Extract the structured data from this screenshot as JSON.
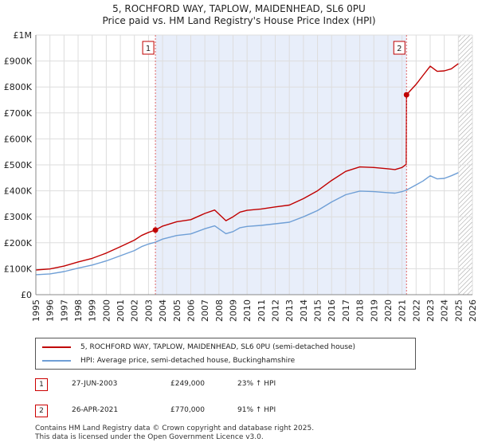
{
  "chart_data": {
    "type": "line",
    "title": "5, ROCHFORD WAY, TAPLOW, MAIDENHEAD, SL6 0PU",
    "subtitle": "Price paid vs. HM Land Registry's House Price Index (HPI)",
    "xlim": [
      1995,
      2026
    ],
    "ylim": [
      0,
      1000000
    ],
    "x_ticks": [
      "1995",
      "1996",
      "1997",
      "1998",
      "1999",
      "2000",
      "2001",
      "2002",
      "2003",
      "2004",
      "2005",
      "2006",
      "2007",
      "2008",
      "2009",
      "2010",
      "2011",
      "2012",
      "2013",
      "2014",
      "2015",
      "2016",
      "2017",
      "2018",
      "2019",
      "2020",
      "2021",
      "2022",
      "2023",
      "2024",
      "2025",
      "2026"
    ],
    "y_ticks": [
      {
        "value": 0,
        "label": "£0"
      },
      {
        "value": 100000,
        "label": "£100K"
      },
      {
        "value": 200000,
        "label": "£200K"
      },
      {
        "value": 300000,
        "label": "£300K"
      },
      {
        "value": 400000,
        "label": "£400K"
      },
      {
        "value": 500000,
        "label": "£500K"
      },
      {
        "value": 600000,
        "label": "£600K"
      },
      {
        "value": 700000,
        "label": "£700K"
      },
      {
        "value": 800000,
        "label": "£800K"
      },
      {
        "value": 900000,
        "label": "£900K"
      },
      {
        "value": 1000000,
        "label": "£1M"
      }
    ],
    "grid": true,
    "shaded_ranges": [
      {
        "from": 2003.49,
        "to": 2021.32,
        "color": "#e8eefa"
      }
    ],
    "future_hatch_from": 2025.0,
    "series": [
      {
        "name": "5, ROCHFORD WAY, TAPLOW, MAIDENHEAD, SL6 0PU (semi-detached house)",
        "color": "#c00000",
        "x": [
          1995,
          1996,
          1997,
          1998,
          1999,
          2000,
          2001,
          2002,
          2002.5,
          2003,
          2003.49,
          2004,
          2005,
          2006,
          2007,
          2007.7,
          2008.5,
          2009,
          2009.5,
          2010,
          2011,
          2012,
          2013,
          2014,
          2014.5,
          2015,
          2016,
          2017,
          2018,
          2019,
          2020,
          2020.5,
          2021,
          2021.3,
          2021.32,
          2022,
          2022.5,
          2023,
          2023.5,
          2024,
          2024.5,
          2025
        ],
        "values": [
          95000,
          99000,
          110000,
          126000,
          140000,
          160000,
          185000,
          210000,
          228000,
          240000,
          249000,
          264000,
          281000,
          289000,
          313000,
          326000,
          285000,
          300000,
          318000,
          325000,
          330000,
          338000,
          345000,
          370000,
          385000,
          400000,
          440000,
          475000,
          492000,
          490000,
          485000,
          482000,
          490000,
          502000,
          770000,
          810000,
          845000,
          880000,
          860000,
          862000,
          870000,
          890000
        ]
      },
      {
        "name": "HPI: Average price, semi-detached house, Buckinghamshire",
        "color": "#6f9fd6",
        "x": [
          1995,
          1996,
          1997,
          1998,
          1999,
          2000,
          2001,
          2002,
          2002.5,
          2003,
          2003.49,
          2004,
          2005,
          2006,
          2007,
          2007.7,
          2008.5,
          2009,
          2009.5,
          2010,
          2011,
          2012,
          2013,
          2014,
          2014.5,
          2015,
          2016,
          2017,
          2018,
          2019,
          2020,
          2020.5,
          2021,
          2021.32,
          2022,
          2022.5,
          2023,
          2023.5,
          2024,
          2024.5,
          2025
        ],
        "values": [
          77000,
          80000,
          89000,
          102000,
          114000,
          130000,
          150000,
          170000,
          185000,
          195000,
          202000,
          214000,
          228000,
          234000,
          254000,
          265000,
          235000,
          243000,
          258000,
          263000,
          267000,
          273000,
          279000,
          300000,
          312000,
          324000,
          357000,
          385000,
          399000,
          397000,
          393000,
          391000,
          397000,
          403000,
          423000,
          438000,
          458000,
          446000,
          448000,
          458000,
          470000
        ]
      }
    ],
    "markers": [
      {
        "label": "1",
        "x": 2003.49,
        "value": 249000
      },
      {
        "label": "2",
        "x": 2021.32,
        "value": 770000
      }
    ]
  },
  "legend": {
    "items": [
      {
        "label": "5, ROCHFORD WAY, TAPLOW, MAIDENHEAD, SL6 0PU (semi-detached house)",
        "color": "#c00000"
      },
      {
        "label": "HPI: Average price, semi-detached house, Buckinghamshire",
        "color": "#6f9fd6"
      }
    ]
  },
  "transactions": [
    {
      "num": "1",
      "date": "27-JUN-2003",
      "price": "£249,000",
      "hpi": "23% ↑ HPI"
    },
    {
      "num": "2",
      "date": "26-APR-2021",
      "price": "£770,000",
      "hpi": "91% ↑ HPI"
    }
  ],
  "footer": {
    "line1": "Contains HM Land Registry data © Crown copyright and database right 2025.",
    "line2": "This data is licensed under the Open Government Licence v3.0."
  }
}
